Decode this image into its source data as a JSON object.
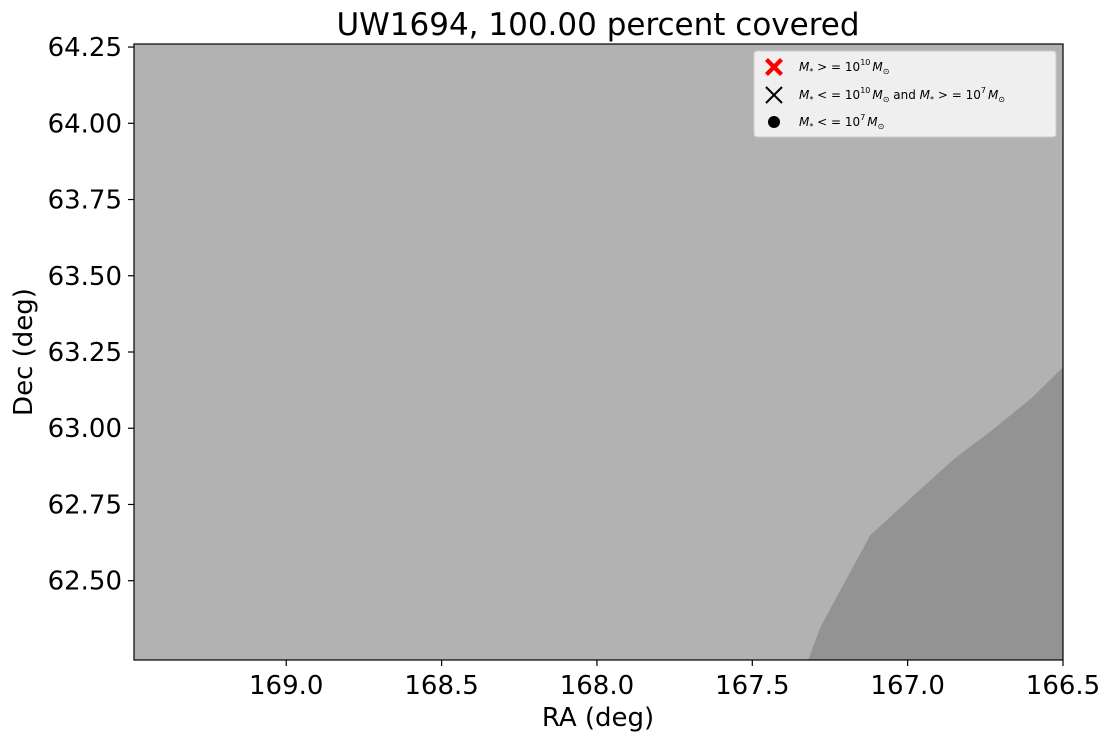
{
  "chart_data": {
    "type": "area",
    "title": "UW1694, 100.00 percent covered",
    "xlabel": "RA (deg)",
    "ylabel": "Dec (deg)",
    "xlim": [
      169.49,
      166.5
    ],
    "ylim": [
      62.24,
      64.26
    ],
    "x_inverted": true,
    "xticks": [
      169.0,
      168.5,
      168.0,
      167.5,
      167.0,
      166.5
    ],
    "xtick_labels": [
      "169.0",
      "168.5",
      "168.0",
      "167.5",
      "167.0",
      "166.5"
    ],
    "yticks": [
      62.5,
      62.75,
      63.0,
      63.25,
      63.5,
      63.75,
      64.0,
      64.25
    ],
    "ytick_labels": [
      "62.50",
      "62.75",
      "63.00",
      "63.25",
      "63.50",
      "63.75",
      "64.00",
      "64.25"
    ],
    "grid": false,
    "background_color": "#b2b2b2",
    "regions": [
      {
        "color": "#939393",
        "boundary": [
          [
            167.32,
            62.24
          ],
          [
            167.28,
            62.35
          ],
          [
            167.2,
            62.5
          ],
          [
            167.12,
            62.65
          ],
          [
            166.98,
            62.78
          ],
          [
            166.85,
            62.9
          ],
          [
            166.72,
            63.0
          ],
          [
            166.6,
            63.1
          ],
          [
            166.5,
            63.2
          ],
          [
            166.5,
            62.24
          ]
        ]
      }
    ],
    "legend": {
      "placement": "top-right",
      "entries": [
        {
          "label": "M_* >= 10^10 M_sun",
          "marker": "filled-x",
          "color": "#ff0000",
          "parts": {
            "a": "M",
            "a_sub": "*",
            "b": " > = 10",
            "b_sup": "10",
            "c": "M",
            "c_sub": "⊙"
          }
        },
        {
          "label": "M_* <= 10^10 M_sun and M_* >= 10^7 M_sun",
          "marker": "x",
          "color": "#000000",
          "parts": {
            "a": "M",
            "a_sub": "*",
            "b": " < = 10",
            "b_sup": "10",
            "c": "M",
            "c_sub": "⊙",
            "d": " and ",
            "e": "M",
            "e_sub": "*",
            "f": " > = 10",
            "f_sup": "7",
            "g": "M",
            "g_sub": "⊙"
          }
        },
        {
          "label": "M_* <= 10^7 M_sun",
          "marker": "circle",
          "color": "#000000",
          "parts": {
            "a": "M",
            "a_sub": "*",
            "b": " < = 10",
            "b_sup": "7",
            "c": "M",
            "c_sub": "⊙"
          }
        }
      ]
    }
  }
}
